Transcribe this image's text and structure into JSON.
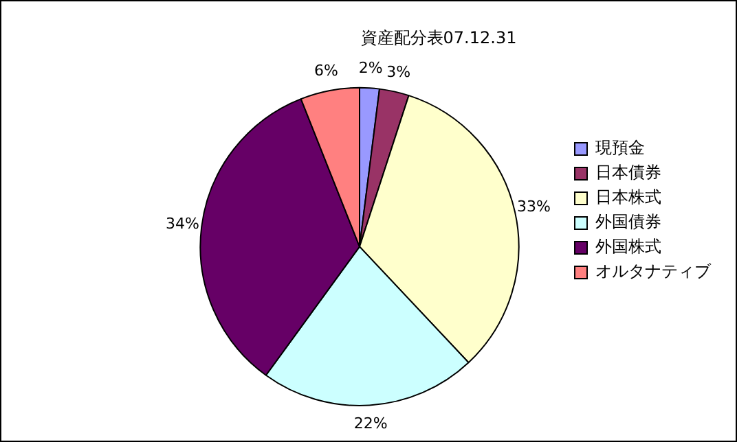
{
  "chart_data": {
    "type": "pie",
    "title": "資産配分表07.12.31",
    "categories": [
      "現預金",
      "日本債券",
      "日本株式",
      "外国債券",
      "外国株式",
      "オルタナティブ"
    ],
    "values": [
      2,
      3,
      33,
      22,
      34,
      6
    ],
    "colors": [
      "#9999ff",
      "#993366",
      "#ffffcc",
      "#ccffff",
      "#660066",
      "#ff8080"
    ],
    "value_labels": [
      "2%",
      "3%",
      "33%",
      "22%",
      "34%",
      "6%"
    ],
    "legend": "right"
  }
}
